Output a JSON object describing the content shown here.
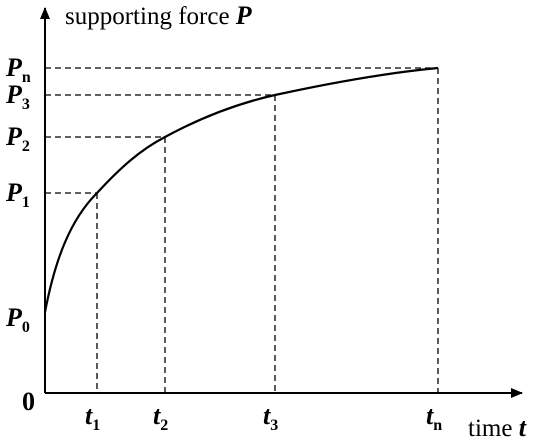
{
  "title": {
    "text": "supporting force",
    "var": "P"
  },
  "x_axis": {
    "text": "time",
    "var": "t"
  },
  "origin": "0",
  "y_labels": [
    {
      "base": "P",
      "sub": "0"
    },
    {
      "base": "P",
      "sub": "1"
    },
    {
      "base": "P",
      "sub": "2"
    },
    {
      "base": "P",
      "sub": "3"
    },
    {
      "base": "P",
      "sub": "n"
    }
  ],
  "x_labels": [
    {
      "base": "t",
      "sub": "1"
    },
    {
      "base": "t",
      "sub": "2"
    },
    {
      "base": "t",
      "sub": "3"
    },
    {
      "base": "t",
      "sub": "n"
    }
  ]
}
